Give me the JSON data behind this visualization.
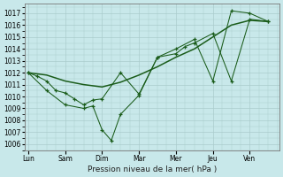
{
  "xlabel": "Pression niveau de la mer( hPa )",
  "background_color": "#c8e8ea",
  "grid_color": "#aacccc",
  "line_color": "#1a5c1a",
  "ylim": [
    1005.5,
    1017.8
  ],
  "yticks": [
    1006,
    1007,
    1008,
    1009,
    1010,
    1011,
    1012,
    1013,
    1014,
    1015,
    1016,
    1017
  ],
  "day_labels": [
    "Lun",
    "Sam",
    "Dim",
    "Mar",
    "Mer",
    "Jeu",
    "Ven"
  ],
  "day_positions": [
    0,
    1,
    2,
    3,
    4,
    5,
    6
  ],
  "xlim": [
    -0.1,
    6.8
  ],
  "smooth_line": {
    "x": [
      0.0,
      0.5,
      1.0,
      1.5,
      2.0,
      2.5,
      3.0,
      3.5,
      4.0,
      4.5,
      5.0,
      5.5,
      6.0,
      6.5
    ],
    "y": [
      1012.0,
      1011.8,
      1011.3,
      1011.0,
      1010.8,
      1011.2,
      1011.8,
      1012.5,
      1013.3,
      1014.0,
      1015.0,
      1016.0,
      1016.4,
      1016.3
    ]
  },
  "line_a": {
    "x": [
      0.0,
      0.25,
      0.5,
      0.75,
      1.0,
      1.25,
      1.5,
      1.75,
      2.0,
      2.5,
      3.0,
      3.5,
      4.0,
      4.25,
      4.5,
      5.0,
      5.5,
      6.0,
      6.5
    ],
    "y": [
      1012.0,
      1011.7,
      1011.3,
      1010.5,
      1010.3,
      1009.8,
      1009.3,
      1009.7,
      1009.8,
      1012.0,
      1010.2,
      1013.3,
      1013.6,
      1014.2,
      1014.5,
      1015.3,
      1011.3,
      1016.5,
      1016.3
    ]
  },
  "line_b": {
    "x": [
      0.0,
      0.5,
      1.0,
      1.5,
      1.75,
      2.0,
      2.25,
      2.5,
      3.0,
      3.5,
      4.0,
      4.5,
      5.0,
      5.5,
      6.0,
      6.5
    ],
    "y": [
      1012.0,
      1010.5,
      1009.3,
      1009.0,
      1009.2,
      1007.2,
      1006.3,
      1008.5,
      1010.1,
      1013.3,
      1014.0,
      1014.8,
      1011.3,
      1017.2,
      1017.0,
      1016.3
    ]
  }
}
